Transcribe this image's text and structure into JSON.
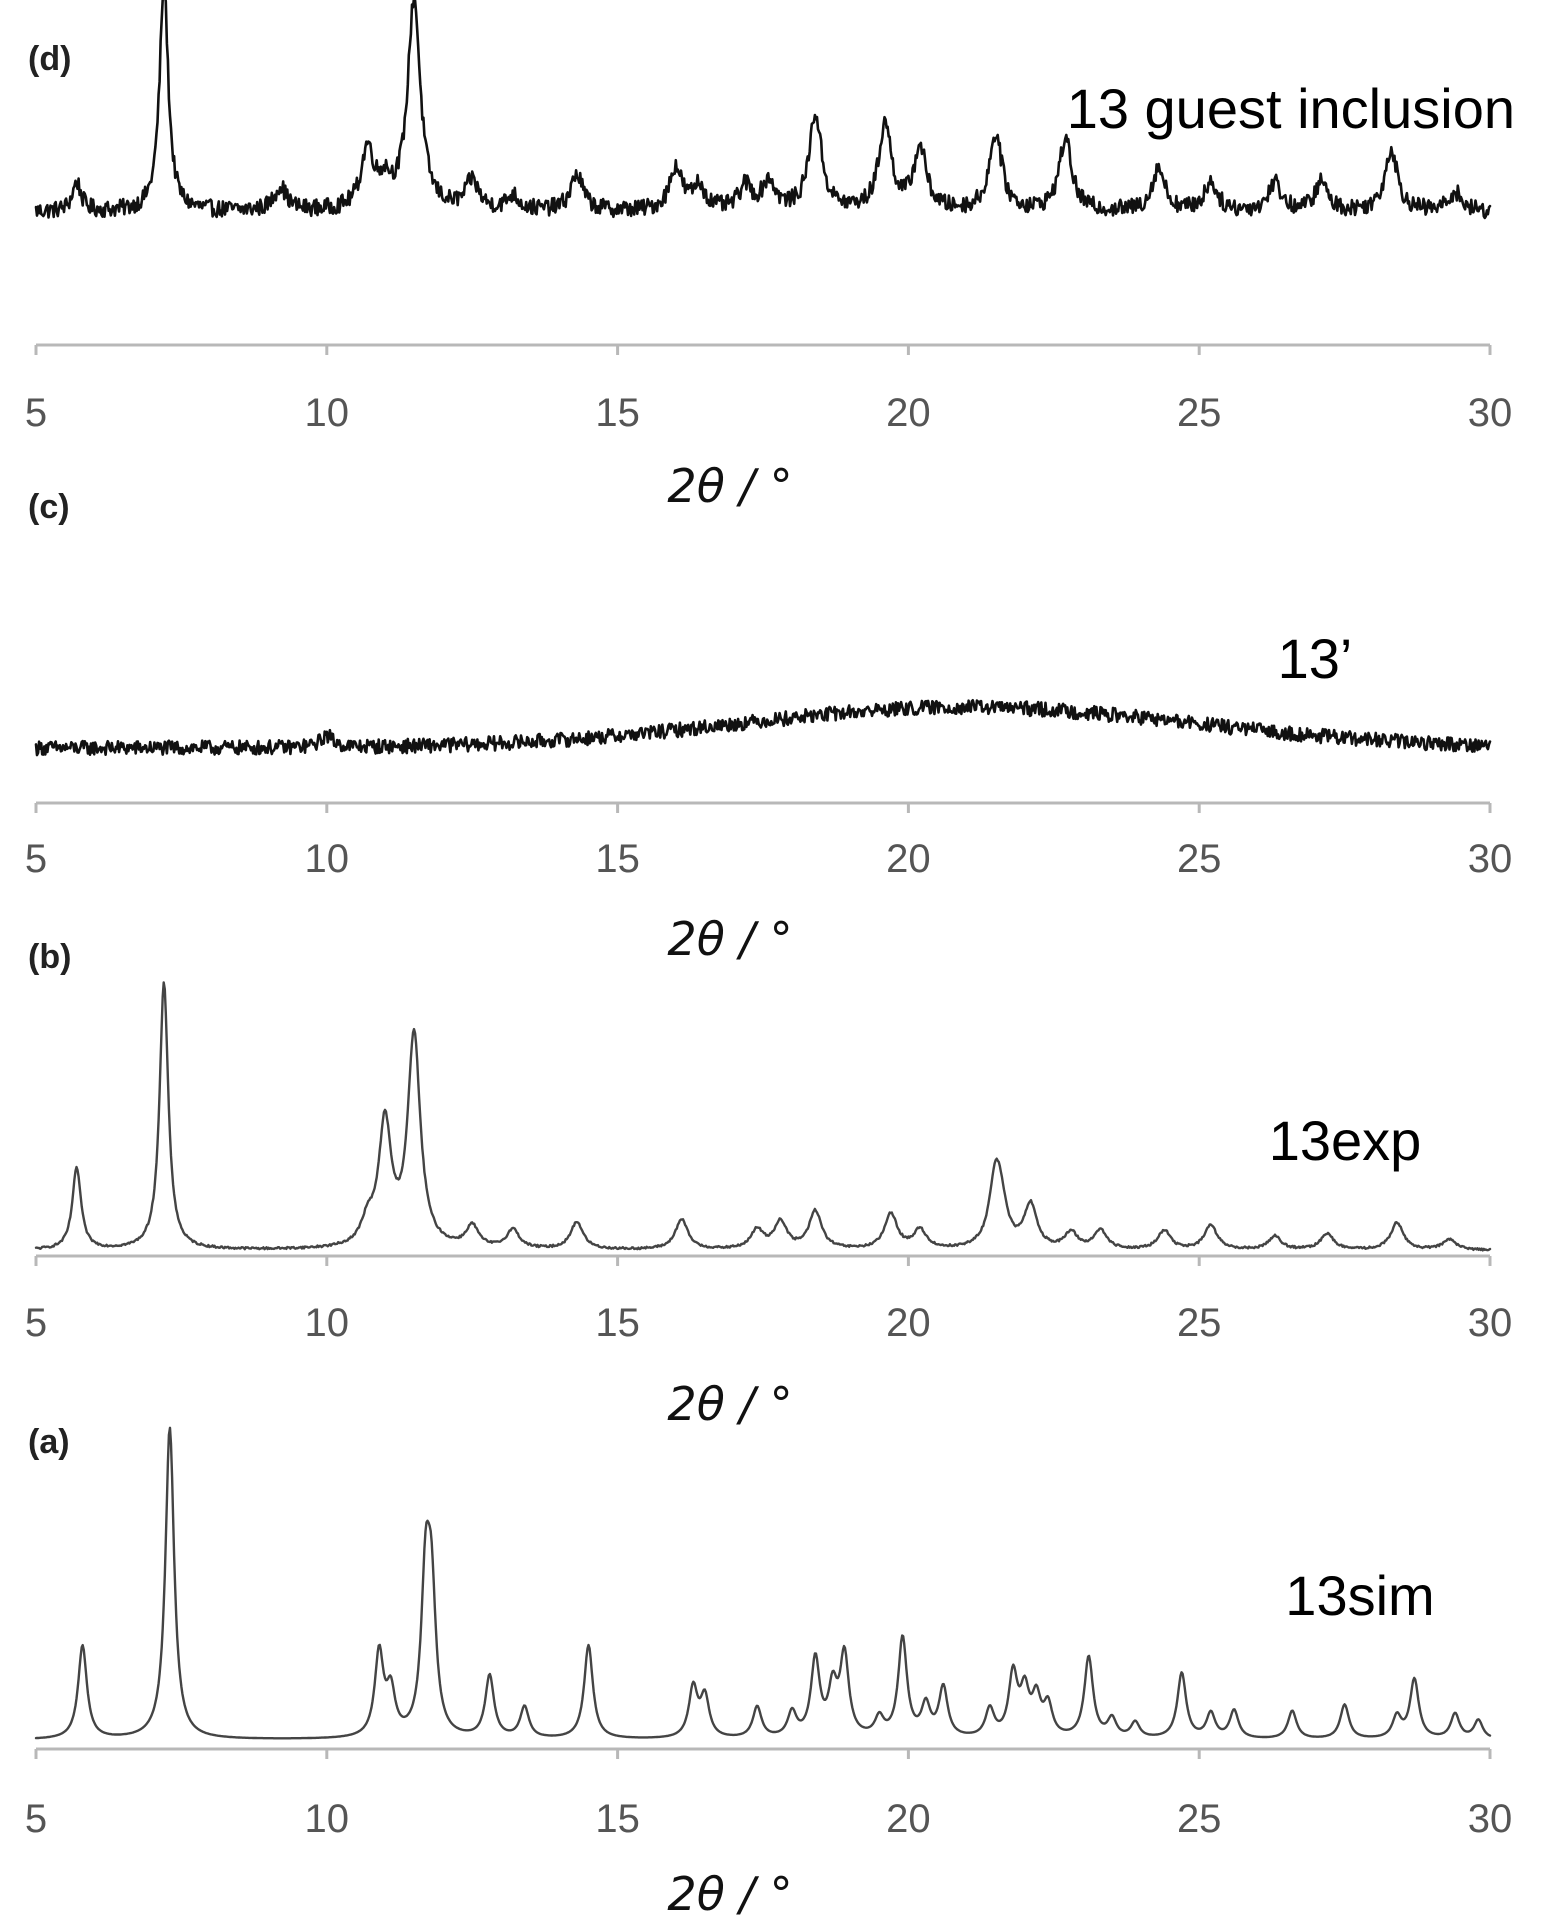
{
  "chart_data": [
    {
      "type": "line",
      "panel": "(d)",
      "series": [
        {
          "name": "13 guest inclusion"
        }
      ],
      "xlabel": "2θ / °",
      "xlim": [
        5,
        30
      ],
      "xticks": [
        "5",
        "10",
        "15",
        "20",
        "25",
        "30"
      ],
      "color": "#111111",
      "baseline": 0.18,
      "noise": 0.035,
      "peaks": [
        {
          "x": 5.7,
          "y": 0.12
        },
        {
          "x": 7.2,
          "y": 0.95
        },
        {
          "x": 9.2,
          "y": 0.1
        },
        {
          "x": 10.7,
          "y": 0.25
        },
        {
          "x": 11.0,
          "y": 0.1
        },
        {
          "x": 11.5,
          "y": 0.88
        },
        {
          "x": 12.5,
          "y": 0.12
        },
        {
          "x": 13.2,
          "y": 0.06
        },
        {
          "x": 14.3,
          "y": 0.15
        },
        {
          "x": 16.0,
          "y": 0.18
        },
        {
          "x": 16.4,
          "y": 0.1
        },
        {
          "x": 17.2,
          "y": 0.1
        },
        {
          "x": 17.6,
          "y": 0.12
        },
        {
          "x": 18.4,
          "y": 0.4
        },
        {
          "x": 19.6,
          "y": 0.36
        },
        {
          "x": 20.2,
          "y": 0.26
        },
        {
          "x": 21.5,
          "y": 0.32
        },
        {
          "x": 22.7,
          "y": 0.3
        },
        {
          "x": 24.3,
          "y": 0.18
        },
        {
          "x": 25.2,
          "y": 0.12
        },
        {
          "x": 26.3,
          "y": 0.12
        },
        {
          "x": 27.1,
          "y": 0.12
        },
        {
          "x": 28.3,
          "y": 0.26
        },
        {
          "x": 29.4,
          "y": 0.08
        }
      ]
    },
    {
      "type": "line",
      "panel": "(c)",
      "series": [
        {
          "name": "13’"
        }
      ],
      "xlabel": "2θ / °",
      "xlim": [
        5,
        30
      ],
      "xticks": [
        "5",
        "10",
        "15",
        "20",
        "25",
        "30"
      ],
      "color": "#111111",
      "baseline": 0.05,
      "noise": 0.03,
      "hump": {
        "center": 21.0,
        "height": 0.17,
        "width": 5.5
      },
      "peaks": [
        {
          "x": 10.0,
          "y": 0.05
        }
      ]
    },
    {
      "type": "line",
      "panel": "(b)",
      "series": [
        {
          "name": "13exp"
        }
      ],
      "xlabel": "2θ / °",
      "xlim": [
        5,
        30
      ],
      "xticks": [
        "5",
        "10",
        "15",
        "20",
        "25",
        "30"
      ],
      "color": "#444444",
      "baseline": 0.01,
      "noise": 0.004,
      "peaks": [
        {
          "x": 5.7,
          "y": 0.3
        },
        {
          "x": 7.2,
          "y": 0.98
        },
        {
          "x": 10.7,
          "y": 0.08
        },
        {
          "x": 11.0,
          "y": 0.45
        },
        {
          "x": 11.5,
          "y": 0.78
        },
        {
          "x": 12.5,
          "y": 0.08
        },
        {
          "x": 13.2,
          "y": 0.07
        },
        {
          "x": 14.3,
          "y": 0.1
        },
        {
          "x": 16.1,
          "y": 0.11
        },
        {
          "x": 17.4,
          "y": 0.07
        },
        {
          "x": 17.8,
          "y": 0.1
        },
        {
          "x": 18.4,
          "y": 0.14
        },
        {
          "x": 19.7,
          "y": 0.13
        },
        {
          "x": 20.2,
          "y": 0.07
        },
        {
          "x": 21.5,
          "y": 0.26
        },
        {
          "x": 21.6,
          "y": 0.1
        },
        {
          "x": 22.1,
          "y": 0.16
        },
        {
          "x": 22.8,
          "y": 0.06
        },
        {
          "x": 23.3,
          "y": 0.07
        },
        {
          "x": 24.4,
          "y": 0.07
        },
        {
          "x": 25.2,
          "y": 0.09
        },
        {
          "x": 26.3,
          "y": 0.05
        },
        {
          "x": 27.2,
          "y": 0.06
        },
        {
          "x": 28.4,
          "y": 0.1
        },
        {
          "x": 29.3,
          "y": 0.04
        }
      ]
    },
    {
      "type": "line",
      "panel": "(a)",
      "series": [
        {
          "name": "13sim"
        }
      ],
      "xlabel": "2θ / °",
      "xlim": [
        5,
        30
      ],
      "xticks": [
        "5",
        "10",
        "15",
        "20",
        "25",
        "30"
      ],
      "color": "#444444",
      "baseline": 0.01,
      "noise": 0.0,
      "peaks": [
        {
          "x": 5.8,
          "y": 0.3
        },
        {
          "x": 7.3,
          "y": 1.0
        },
        {
          "x": 10.9,
          "y": 0.27
        },
        {
          "x": 11.1,
          "y": 0.14
        },
        {
          "x": 11.7,
          "y": 0.48
        },
        {
          "x": 11.8,
          "y": 0.42
        },
        {
          "x": 12.8,
          "y": 0.2
        },
        {
          "x": 13.4,
          "y": 0.1
        },
        {
          "x": 14.5,
          "y": 0.3
        },
        {
          "x": 16.3,
          "y": 0.16
        },
        {
          "x": 16.5,
          "y": 0.13
        },
        {
          "x": 17.4,
          "y": 0.1
        },
        {
          "x": 18.0,
          "y": 0.08
        },
        {
          "x": 18.4,
          "y": 0.25
        },
        {
          "x": 18.7,
          "y": 0.15
        },
        {
          "x": 18.9,
          "y": 0.26
        },
        {
          "x": 19.5,
          "y": 0.06
        },
        {
          "x": 19.9,
          "y": 0.32
        },
        {
          "x": 20.3,
          "y": 0.1
        },
        {
          "x": 20.6,
          "y": 0.16
        },
        {
          "x": 21.4,
          "y": 0.09
        },
        {
          "x": 21.8,
          "y": 0.2
        },
        {
          "x": 22.0,
          "y": 0.14
        },
        {
          "x": 22.2,
          "y": 0.12
        },
        {
          "x": 22.4,
          "y": 0.1
        },
        {
          "x": 23.1,
          "y": 0.26
        },
        {
          "x": 23.5,
          "y": 0.06
        },
        {
          "x": 23.9,
          "y": 0.05
        },
        {
          "x": 24.7,
          "y": 0.21
        },
        {
          "x": 25.2,
          "y": 0.08
        },
        {
          "x": 25.6,
          "y": 0.09
        },
        {
          "x": 26.6,
          "y": 0.09
        },
        {
          "x": 27.5,
          "y": 0.11
        },
        {
          "x": 28.4,
          "y": 0.07
        },
        {
          "x": 28.7,
          "y": 0.19
        },
        {
          "x": 29.4,
          "y": 0.08
        },
        {
          "x": 29.8,
          "y": 0.06
        }
      ]
    }
  ]
}
